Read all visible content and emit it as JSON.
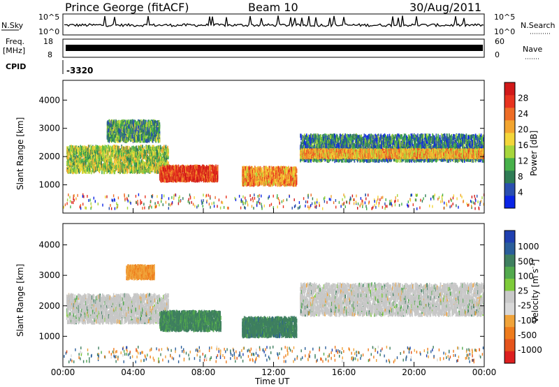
{
  "header": {
    "station": "Prince George (fitACF)",
    "beam": "Beam 10",
    "date": "30/Aug/2011"
  },
  "summary_panels": {
    "nsky_label": "N.Sky",
    "nsky_ticks": [
      "10^5",
      "10^0"
    ],
    "nsearch_label": "N.Search",
    "nsearch_ticks": [
      "10^5",
      "10^0"
    ],
    "freq_label_line1": "Freq.",
    "freq_label_line2": "[MHz]",
    "freq_ticks": [
      "18",
      "8"
    ],
    "nave_label": "Nave",
    "nave_ticks": [
      "60",
      "0"
    ],
    "cpid_label": "CPID",
    "cpid_value": "-3320"
  },
  "colors": {
    "scale": [
      "#0a24e6",
      "#2a4fb0",
      "#2f7c55",
      "#47b14a",
      "#a7d63c",
      "#f3d63a",
      "#f3a52f",
      "#ee6d26",
      "#e8331f",
      "#d11919"
    ],
    "velocity_scale": [
      "#1f3fb0",
      "#2a5e9a",
      "#3e7f5f",
      "#52a94d",
      "#7ecb3a",
      "#c9c9c9",
      "#d8d8d8",
      "#f0a33a",
      "#ee7b1c",
      "#e5541c",
      "#dd1f1f"
    ],
    "ground_scatter": "#c7c7c7"
  },
  "chart_data": [
    {
      "type": "heatmap",
      "quantity": "power",
      "xlabel": "Time UT",
      "ylabel": "Slant Range [km]",
      "x_ticks": [
        "00:00",
        "04:00",
        "08:00",
        "12:00",
        "16:00",
        "20:00",
        "00:00"
      ],
      "y_ticks": [
        1000,
        2000,
        3000,
        4000
      ],
      "ylim": [
        0,
        4700
      ],
      "xlim_hours": [
        0,
        24
      ],
      "colorbar_label": "Power [dB]",
      "colorbar_ticks": [
        4,
        8,
        12,
        16,
        20,
        24,
        28
      ],
      "colorbar_range": [
        0,
        32
      ],
      "echo_regions": [
        {
          "t_start": 0.2,
          "t_end": 6.0,
          "r_center": 1900,
          "r_width": 900,
          "level": 14
        },
        {
          "t_start": 2.5,
          "t_end": 5.5,
          "r_center": 2900,
          "r_width": 700,
          "level": 10
        },
        {
          "t_start": 5.5,
          "t_end": 8.8,
          "r_center": 1400,
          "r_width": 500,
          "level": 28
        },
        {
          "t_start": 10.2,
          "t_end": 13.3,
          "r_center": 1300,
          "r_width": 600,
          "level": 22
        },
        {
          "t_start": 13.5,
          "t_end": 24.0,
          "r_center": 2300,
          "r_width": 900,
          "level": 8
        },
        {
          "t_start": 13.5,
          "t_end": 24.0,
          "r_center": 2100,
          "r_width": 250,
          "level": 20
        }
      ]
    },
    {
      "type": "heatmap",
      "quantity": "velocity",
      "xlabel": "Time UT",
      "ylabel": "Slant Range [km]",
      "x_ticks": [
        "00:00",
        "04:00",
        "08:00",
        "12:00",
        "16:00",
        "20:00",
        "00:00"
      ],
      "y_ticks": [
        1000,
        2000,
        3000,
        4000
      ],
      "ylim": [
        0,
        4700
      ],
      "xlim_hours": [
        0,
        24
      ],
      "colorbar_label": "Velocity [m s^-1]",
      "colorbar_ticks": [
        1000,
        500,
        100,
        25,
        -25,
        -100,
        -500,
        -1000
      ],
      "echo_regions": [
        {
          "t_start": 0.2,
          "t_end": 6.0,
          "r_center": 1900,
          "r_width": 900,
          "level": 0
        },
        {
          "t_start": 3.6,
          "t_end": 5.2,
          "r_center": 3100,
          "r_width": 400,
          "level": -400
        },
        {
          "t_start": 5.5,
          "t_end": 9.0,
          "r_center": 1500,
          "r_width": 600,
          "level": 150
        },
        {
          "t_start": 10.2,
          "t_end": 13.3,
          "r_center": 1300,
          "r_width": 600,
          "level": 300
        },
        {
          "t_start": 13.5,
          "t_end": 24.0,
          "r_center": 2200,
          "r_width": 1000,
          "level": 0
        }
      ]
    }
  ]
}
